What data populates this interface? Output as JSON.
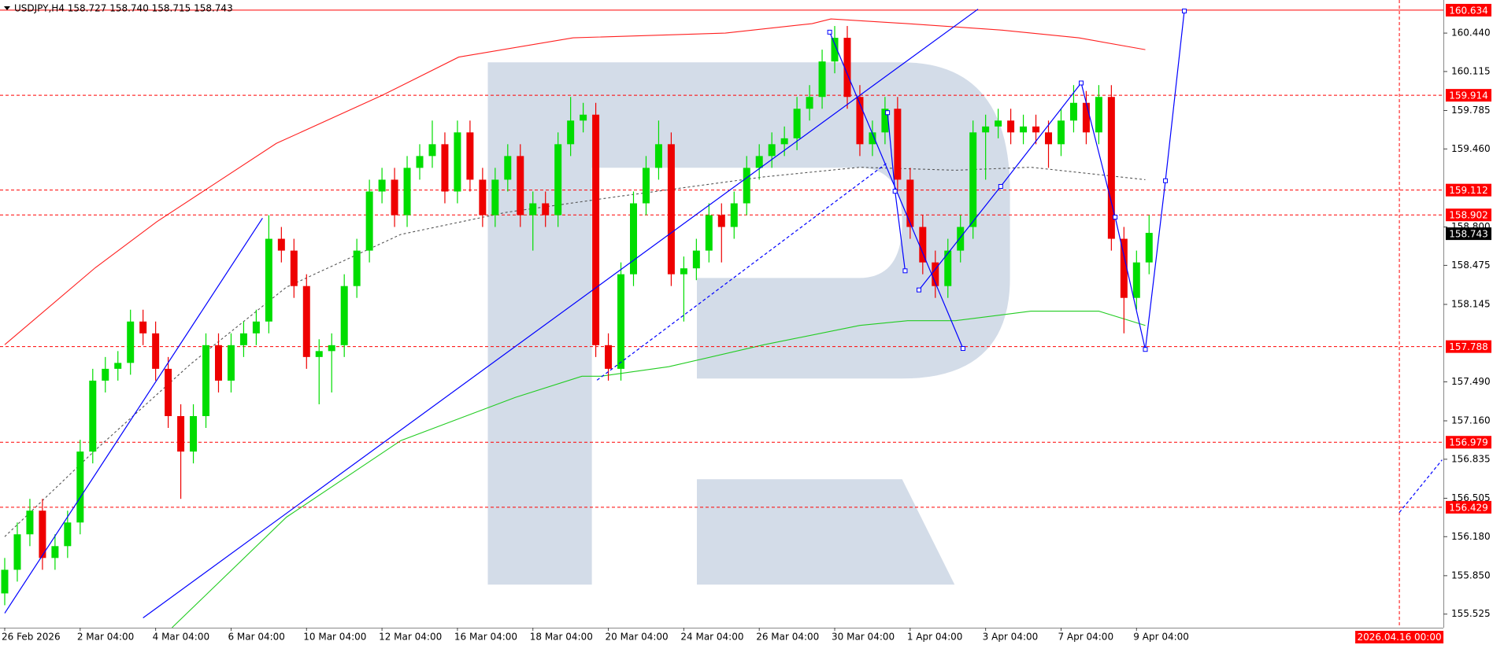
{
  "chart_data": {
    "type": "candlestick",
    "title": "USDJPY,H4  158.727 158.740 158.715 158.743",
    "categories": [
      "26 Feb 2026",
      null,
      null,
      null,
      null,
      null,
      "2 Mar 04:00",
      null,
      null,
      null,
      null,
      null,
      "4 Mar 04:00",
      null,
      null,
      null,
      null,
      null,
      "6 Mar 04:00",
      null,
      null,
      null,
      null,
      null,
      "10 Mar 04:00",
      null,
      null,
      null,
      null,
      null,
      "12 Mar 04:00",
      null,
      null,
      null,
      null,
      null,
      "16 Mar 04:00",
      null,
      null,
      null,
      null,
      null,
      "18 Mar 04:00",
      null,
      null,
      null,
      null,
      null,
      "20 Mar 04:00",
      null,
      null,
      null,
      null,
      null,
      "24 Mar 04:00",
      null,
      null,
      null,
      null,
      null,
      "26 Mar 04:00",
      null,
      null,
      null,
      null,
      null,
      "30 Mar 04:00",
      null,
      null,
      null,
      null,
      null,
      "1 Apr 04:00",
      null,
      null,
      null,
      null,
      null,
      "3 Apr 04:00",
      null,
      null,
      null,
      null,
      null,
      "7 Apr 04:00",
      null,
      null,
      null,
      null,
      null,
      "9 Apr 04:00",
      null
    ],
    "open": [
      155.7,
      155.9,
      156.2,
      156.4,
      156.0,
      156.1,
      156.3,
      156.9,
      157.5,
      157.6,
      157.65,
      158.0,
      157.9,
      157.6,
      157.2,
      156.9,
      157.2,
      157.8,
      157.5,
      157.8,
      157.9,
      158.0,
      158.7,
      158.6,
      158.3,
      157.7,
      157.75,
      157.8,
      158.3,
      158.6,
      159.1,
      159.2,
      158.9,
      159.3,
      159.4,
      159.5,
      159.1,
      159.6,
      159.2,
      158.9,
      159.2,
      159.4,
      158.9,
      159.0,
      158.9,
      159.5,
      159.7,
      159.75,
      157.8,
      157.6,
      158.4,
      159.0,
      159.3,
      159.5,
      158.4,
      158.45,
      158.6,
      158.9,
      158.8,
      159.0,
      159.3,
      159.4,
      159.5,
      159.55,
      159.8,
      159.9,
      160.2,
      160.4,
      159.9,
      159.5,
      159.6,
      159.8,
      159.2,
      158.8,
      158.5,
      158.3,
      158.6,
      158.8,
      159.6,
      159.65,
      159.7,
      159.6,
      159.65,
      159.6,
      159.5,
      159.7,
      159.85,
      159.6,
      159.9,
      158.7,
      158.2,
      158.5
    ],
    "high": [
      156.0,
      156.3,
      156.5,
      156.5,
      156.2,
      156.4,
      157.0,
      157.6,
      157.7,
      157.75,
      158.1,
      158.1,
      158.0,
      157.7,
      157.3,
      157.3,
      157.9,
      157.9,
      157.9,
      158.0,
      158.1,
      158.9,
      158.8,
      158.7,
      158.4,
      157.85,
      157.9,
      158.4,
      158.7,
      159.2,
      159.3,
      159.3,
      159.4,
      159.5,
      159.7,
      159.6,
      159.7,
      159.7,
      159.3,
      159.3,
      159.5,
      159.5,
      159.1,
      159.1,
      159.6,
      159.9,
      159.85,
      159.85,
      157.9,
      158.5,
      159.1,
      159.4,
      159.7,
      159.6,
      158.55,
      158.7,
      159.0,
      159.0,
      159.1,
      159.4,
      159.5,
      159.6,
      159.65,
      159.9,
      160.0,
      160.3,
      160.5,
      160.5,
      160.0,
      159.7,
      159.9,
      159.9,
      159.3,
      158.9,
      158.6,
      158.7,
      158.9,
      159.7,
      159.75,
      159.8,
      159.8,
      159.75,
      159.75,
      159.7,
      159.8,
      160.0,
      159.95,
      160.0,
      160.0,
      158.8,
      158.6,
      158.9
    ],
    "low": [
      155.6,
      155.8,
      156.1,
      155.9,
      155.9,
      156.0,
      156.2,
      156.8,
      157.4,
      157.5,
      157.55,
      157.8,
      157.5,
      157.1,
      156.5,
      156.8,
      157.1,
      157.4,
      157.4,
      157.7,
      157.8,
      157.9,
      158.5,
      158.2,
      157.6,
      157.3,
      157.4,
      157.7,
      158.2,
      158.5,
      159.0,
      158.8,
      158.8,
      159.2,
      159.3,
      159.0,
      159.0,
      159.1,
      158.8,
      158.8,
      159.1,
      158.8,
      158.6,
      158.8,
      158.8,
      159.4,
      159.6,
      157.7,
      157.5,
      157.5,
      158.3,
      158.9,
      159.2,
      158.3,
      158.0,
      158.35,
      158.5,
      158.5,
      158.7,
      158.9,
      159.2,
      159.3,
      159.4,
      159.45,
      159.7,
      159.8,
      160.1,
      159.8,
      159.4,
      159.4,
      159.5,
      159.1,
      158.7,
      158.4,
      158.2,
      158.2,
      158.5,
      158.7,
      159.2,
      159.55,
      159.5,
      159.5,
      159.5,
      159.3,
      159.4,
      159.6,
      159.5,
      159.5,
      158.6,
      157.9,
      158.1,
      158.4
    ],
    "close": [
      155.9,
      156.2,
      156.4,
      156.0,
      156.1,
      156.3,
      156.9,
      157.5,
      157.6,
      157.65,
      158.0,
      157.9,
      157.6,
      157.2,
      156.9,
      157.2,
      157.8,
      157.5,
      157.8,
      157.9,
      158.0,
      158.7,
      158.6,
      158.3,
      157.7,
      157.75,
      157.8,
      158.3,
      158.6,
      159.1,
      159.2,
      158.9,
      159.3,
      159.4,
      159.5,
      159.1,
      159.6,
      159.2,
      158.9,
      159.2,
      159.4,
      158.9,
      159.0,
      158.9,
      159.5,
      159.7,
      159.75,
      157.8,
      157.6,
      158.4,
      159.0,
      159.3,
      159.5,
      158.4,
      158.45,
      158.6,
      158.9,
      158.8,
      159.0,
      159.3,
      159.4,
      159.5,
      159.55,
      159.8,
      159.9,
      160.2,
      160.4,
      159.9,
      159.5,
      159.6,
      159.8,
      159.2,
      158.8,
      158.5,
      158.3,
      158.6,
      158.8,
      159.6,
      159.65,
      159.7,
      159.6,
      159.65,
      159.6,
      159.5,
      159.7,
      159.85,
      159.6,
      159.9,
      158.7,
      158.2,
      158.5,
      158.75
    ],
    "up_color": "#00dd00",
    "down_color": "#ee0000",
    "ylim": [
      155.41,
      160.72
    ],
    "yticks": [
      {
        "value": 160.44,
        "label": "160.440"
      },
      160.115,
      159.785,
      {
        "value": 159.46,
        "label": "159.460"
      },
      {
        "value": 158.8,
        "label": "158.800"
      },
      158.475,
      158.145,
      {
        "value": 157.49,
        "label": "157.490"
      },
      {
        "value": 157.16,
        "label": "157.160"
      },
      156.835,
      156.505,
      {
        "value": 156.18,
        "label": "156.180"
      },
      {
        "value": 155.85,
        "label": "155.850"
      },
      155.525
    ],
    "levels_solid": [
      160.634
    ],
    "levels_dashed": [
      159.914,
      159.112,
      158.902,
      157.788,
      156.979,
      156.429
    ],
    "level_color": "#ff0000",
    "last_price": 158.743,
    "marker_line": {
      "x": 110.9,
      "label": "2026.04.16 00:00"
    },
    "moving_averages": [
      {
        "color": "#ff2020",
        "x": [
          0,
          7.2,
          12.1,
          21.6,
          30,
          36.1,
          45.2,
          57.3,
          64.2,
          65.7,
          71.8,
          79.3,
          85.4,
          90.7
        ],
        "values": [
          157.804,
          158.455,
          158.845,
          159.507,
          159.913,
          160.237,
          160.4,
          160.44,
          160.52,
          160.56,
          160.52,
          160.465,
          160.4,
          160.3
        ]
      },
      {
        "color": "#22cc22",
        "x": [
          13.3,
          22.4,
          31.5,
          40.6,
          45.9,
          47.4,
          52.8,
          60.4,
          68,
          71.8,
          75.6,
          81.6,
          87,
          90.7
        ],
        "values": [
          155.41,
          156.345,
          156.993,
          157.358,
          157.537,
          157.537,
          157.618,
          157.804,
          157.967,
          158.007,
          158.007,
          158.088,
          158.088,
          157.967
        ]
      },
      {
        "color": "#555555",
        "dash": true,
        "x": [
          0,
          7.2,
          14.8,
          22.4,
          31.5,
          39.9,
          49,
          60.4,
          68,
          75.6,
          81.6,
          90.7
        ],
        "values": [
          156.18,
          156.912,
          157.642,
          158.291,
          158.737,
          158.924,
          159.061,
          159.224,
          159.305,
          159.28,
          159.305,
          159.2
        ]
      }
    ],
    "drawings": [
      {
        "color": "#0000ff",
        "x": [
          0,
          20.5
        ],
        "values": [
          155.533,
          158.875
        ]
      },
      {
        "color": "#0000ff",
        "x": [
          11.0,
          77.4
        ],
        "values": [
          155.493,
          160.643
        ]
      },
      {
        "color": "#0000ff",
        "dash": true,
        "x": [
          47.1,
          70.2
        ],
        "values": [
          157.504,
          159.345
        ]
      },
      {
        "color": "#0000ff",
        "dash": true,
        "x": [
          110.9,
          114.3
        ],
        "values": [
          156.385,
          156.83
        ]
      },
      {
        "color": "#0000ff",
        "markers": true,
        "x": [
          65.6,
          76.2
        ],
        "values": [
          160.448,
          157.772
        ]
      },
      {
        "color": "#0000ff",
        "markers": true,
        "x": [
          70.2,
          70.8,
          71.6
        ],
        "values": [
          159.767,
          159.102,
          158.429
        ]
      },
      {
        "color": "#0000ff",
        "markers": true,
        "x": [
          72.7,
          79.2,
          85.6,
          88.3,
          90.7,
          92.3,
          93.8
        ],
        "values": [
          158.267,
          159.143,
          160.018,
          158.883,
          157.764,
          159.191,
          160.627
        ]
      }
    ]
  }
}
